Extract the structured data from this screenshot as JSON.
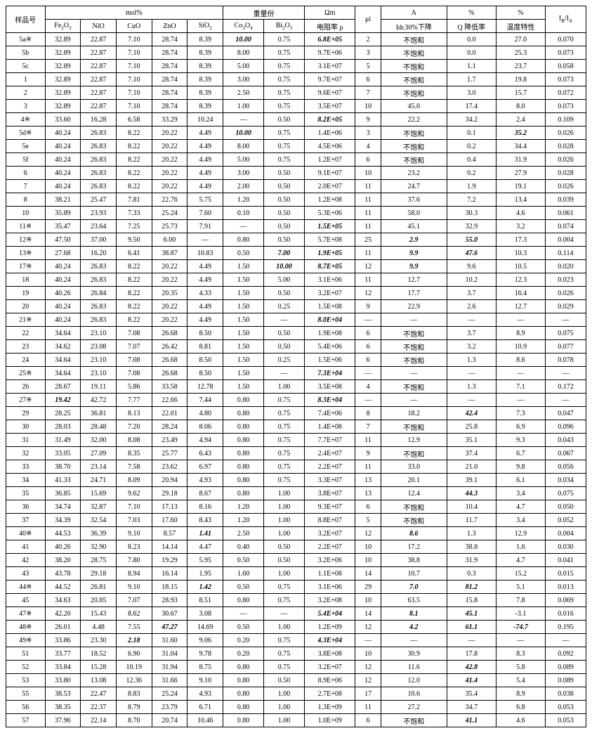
{
  "headers": {
    "group_mol": "mol%",
    "group_wt": "重量份",
    "group_ohm": "Ωm",
    "group_a": "A",
    "group_pct": "%",
    "sample": "样品号",
    "fe2o3": "Fe₂O₃",
    "nio": "NiO",
    "cuo": "CuO",
    "zno": "ZnO",
    "sio2": "SiO₂",
    "co3o4": "Co₃O₄",
    "bi2o3": "Bi₂O₃",
    "rho": "电阻率 ρ",
    "ui": "μi",
    "idc": "Idc30%下降",
    "q": "Q 降低率",
    "temp": "温度特性",
    "ibia": "I_B/I_A"
  },
  "rows": [
    {
      "s": "5a※",
      "fe": "32.89",
      "ni": "22.87",
      "cu": "7.10",
      "zn": "28.74",
      "si": "8.39",
      "co": "10.00",
      "co_bi": true,
      "bi": "0.75",
      "r": "6.8E+05",
      "r_bi": true,
      "ui": "2",
      "idc": "不饱和",
      "q": "0.0",
      "t": "27.0",
      "ib": "0.070"
    },
    {
      "s": "5b",
      "fe": "32.89",
      "ni": "22.87",
      "cu": "7.10",
      "zn": "28.74",
      "si": "8.39",
      "co": "8.00",
      "bi": "0.75",
      "r": "9.7E+06",
      "ui": "3",
      "idc": "不饱和",
      "q": "0.0",
      "t": "25.3",
      "ib": "0.073"
    },
    {
      "s": "5c",
      "fe": "32.89",
      "ni": "22.87",
      "cu": "7.10",
      "zn": "28.74",
      "si": "8.39",
      "co": "5.00",
      "bi": "0.75",
      "r": "3.1E+07",
      "ui": "5",
      "idc": "不饱和",
      "q": "1.1",
      "t": "23.7",
      "ib": "0.058"
    },
    {
      "s": "1",
      "fe": "32.89",
      "ni": "22.87",
      "cu": "7.10",
      "zn": "28.74",
      "si": "8.39",
      "co": "3.00",
      "bi": "0.75",
      "r": "9.7E+07",
      "ui": "6",
      "idc": "不饱和",
      "q": "1.7",
      "t": "19.8",
      "ib": "0.073"
    },
    {
      "s": "2",
      "fe": "32.89",
      "ni": "22.87",
      "cu": "7.10",
      "zn": "28.74",
      "si": "8.39",
      "co": "2.50",
      "bi": "0.75",
      "r": "9.6E+07",
      "ui": "7",
      "idc": "不饱和",
      "q": "3.0",
      "t": "15.7",
      "ib": "0.072"
    },
    {
      "s": "3",
      "fe": "32.89",
      "ni": "22.87",
      "cu": "7.10",
      "zn": "28.74",
      "si": "8.39",
      "co": "1.00",
      "bi": "0.75",
      "r": "3.5E+07",
      "ui": "10",
      "idc": "45.0",
      "q": "17.4",
      "t": "8.0",
      "ib": "0.073"
    },
    {
      "s": "4※",
      "fe": "33.60",
      "ni": "16.28",
      "cu": "6.58",
      "zn": "33.29",
      "si": "10.24",
      "co": "—",
      "bi": "0.50",
      "r": "8.2E+05",
      "r_bi": true,
      "ui": "9",
      "idc": "22.2",
      "q": "34.2",
      "t": "2.4",
      "ib": "0.109"
    },
    {
      "s": "5d※",
      "fe": "40.24",
      "ni": "26.83",
      "cu": "8.22",
      "zn": "20.22",
      "si": "4.49",
      "co": "10.00",
      "co_bi": true,
      "bi": "0.75",
      "r": "1.4E+06",
      "ui": "3",
      "idc": "不饱和",
      "q": "0.1",
      "t": "35.2",
      "t_bi": true,
      "ib": "0.026"
    },
    {
      "s": "5e",
      "fe": "40.24",
      "ni": "26.83",
      "cu": "8.22",
      "zn": "20.22",
      "si": "4.49",
      "co": "8.00",
      "bi": "0.75",
      "r": "4.5E+06",
      "ui": "4",
      "idc": "不饱和",
      "q": "0.2",
      "t": "34.4",
      "ib": "0.028"
    },
    {
      "s": "5f",
      "fe": "40.24",
      "ni": "26.83",
      "cu": "8.22",
      "zn": "20.22",
      "si": "4.49",
      "co": "5.00",
      "bi": "0.75",
      "r": "1.2E+07",
      "ui": "6",
      "idc": "不饱和",
      "q": "0.4",
      "t": "31.9",
      "ib": "0.026"
    },
    {
      "s": "6",
      "fe": "40.24",
      "ni": "26.83",
      "cu": "8.22",
      "zn": "20.22",
      "si": "4.49",
      "co": "3.00",
      "bi": "0.50",
      "r": "9.1E+07",
      "ui": "10",
      "idc": "23.2",
      "q": "0.2",
      "t": "27.9",
      "ib": "0.028"
    },
    {
      "s": "7",
      "fe": "40.24",
      "ni": "26.83",
      "cu": "8.22",
      "zn": "20.22",
      "si": "4.49",
      "co": "2.00",
      "bi": "0.50",
      "r": "2.0E+07",
      "ui": "11",
      "idc": "24.7",
      "q": "1.9",
      "t": "19.1",
      "ib": "0.026"
    },
    {
      "s": "8",
      "fe": "38.21",
      "ni": "25.47",
      "cu": "7.81",
      "zn": "22.76",
      "si": "5.75",
      "co": "1.20",
      "bi": "0.50",
      "r": "1.2E+08",
      "ui": "11",
      "idc": "37.6",
      "q": "7.2",
      "t": "13.4",
      "ib": "0.039"
    },
    {
      "s": "10",
      "fe": "35.89",
      "ni": "23.93",
      "cu": "7.33",
      "zn": "25.24",
      "si": "7.60",
      "co": "0.10",
      "bi": "0.50",
      "r": "5.3E+06",
      "ui": "11",
      "idc": "58.0",
      "q": "30.3",
      "t": "4.6",
      "ib": "0.061"
    },
    {
      "s": "11※",
      "fe": "35.47",
      "ni": "23.64",
      "cu": "7.25",
      "zn": "25.73",
      "si": "7.91",
      "co": "—",
      "bi": "0.50",
      "r": "1.5E+05",
      "r_bi": true,
      "ui": "11",
      "idc": "45.1",
      "q": "32.9",
      "t": "3.2",
      "ib": "0.074"
    },
    {
      "s": "12※",
      "fe": "47.50",
      "ni": "37.00",
      "cu": "9.50",
      "zn": "6.00",
      "si": "—",
      "co": "0.80",
      "bi": "0.50",
      "r": "5.7E+08",
      "ui": "25",
      "idc": "2.9",
      "idc_bi": true,
      "q": "55.0",
      "q_bi": true,
      "t": "17.3",
      "ib": "0.004"
    },
    {
      "s": "13※",
      "fe": "27.68",
      "ni": "16.20",
      "cu": "6.41",
      "zn": "38.87",
      "si": "10.83",
      "co": "0.50",
      "bi": "7.00",
      "bi_bi": true,
      "r": "1.9E+05",
      "r_bi": true,
      "ui": "11",
      "idc": "9.9",
      "idc_bi": true,
      "q": "47.6",
      "q_bi": true,
      "t": "10.3",
      "ib": "0.114"
    },
    {
      "s": "17※",
      "fe": "40.24",
      "ni": "26.83",
      "cu": "8.22",
      "zn": "20.22",
      "si": "4.49",
      "co": "1.50",
      "bi": "10.00",
      "bi_bi": true,
      "r": "8.7E+05",
      "r_bi": true,
      "ui": "12",
      "idc": "9.9",
      "idc_bi": true,
      "q": "9.6",
      "t": "10.5",
      "ib": "0.020"
    },
    {
      "s": "18",
      "fe": "40.24",
      "ni": "26.83",
      "cu": "8.22",
      "zn": "20.22",
      "si": "4.49",
      "co": "1.50",
      "bi": "5.00",
      "r": "3.1E+06",
      "ui": "11",
      "idc": "12.7",
      "q": "10.2",
      "t": "12.3",
      "ib": "0.023"
    },
    {
      "s": "19",
      "fe": "40.26",
      "ni": "26.84",
      "cu": "8.22",
      "zn": "20.35",
      "si": "4.33",
      "co": "1.50",
      "bi": "0.50",
      "r": "3.2E+07",
      "ui": "12",
      "idc": "17.7",
      "q": "3.7",
      "t": "16.4",
      "ib": "0.026"
    },
    {
      "s": "20",
      "fe": "40.24",
      "ni": "26.83",
      "cu": "8.22",
      "zn": "20.22",
      "si": "4.49",
      "co": "1.50",
      "bi": "0.25",
      "r": "1.5E+08",
      "ui": "9",
      "idc": "22.9",
      "q": "2.6",
      "t": "12.7",
      "ib": "0.029"
    },
    {
      "s": "21※",
      "fe": "40.24",
      "ni": "26.83",
      "cu": "8.22",
      "zn": "20.22",
      "si": "4.49",
      "co": "1.50",
      "bi": "—",
      "r": "8.0E+04",
      "r_bi": true,
      "ui": "—",
      "idc": "—",
      "q": "—",
      "t": "—",
      "ib": "—"
    },
    {
      "s": "22",
      "fe": "34.64",
      "ni": "23.10",
      "cu": "7.08",
      "zn": "26.68",
      "si": "8.50",
      "co": "1.50",
      "bi": "0.50",
      "r": "1.9E+08",
      "ui": "6",
      "idc": "不饱和",
      "q": "3.7",
      "t": "8.9",
      "ib": "0.075"
    },
    {
      "s": "23",
      "fe": "34.62",
      "ni": "23.08",
      "cu": "7.07",
      "zn": "26.42",
      "si": "8.81",
      "co": "1.50",
      "bi": "0.50",
      "r": "5.4E+06",
      "ui": "6",
      "idc": "不饱和",
      "q": "3.2",
      "t": "10.9",
      "ib": "0.077"
    },
    {
      "s": "24",
      "fe": "34.64",
      "ni": "23.10",
      "cu": "7.08",
      "zn": "26.68",
      "si": "8.50",
      "co": "1.50",
      "bi": "0.25",
      "r": "1.5E+06",
      "ui": "6",
      "idc": "不饱和",
      "q": "1.3",
      "t": "8.6",
      "ib": "0.078"
    },
    {
      "s": "25※",
      "fe": "34.64",
      "ni": "23.10",
      "cu": "7.08",
      "zn": "26.68",
      "si": "8.50",
      "co": "1.50",
      "bi": "—",
      "r": "7.3E+04",
      "r_bi": true,
      "ui": "—",
      "idc": "—",
      "q": "—",
      "t": "—",
      "ib": "—"
    },
    {
      "s": "26",
      "fe": "28.67",
      "ni": "19.11",
      "cu": "5.86",
      "zn": "33.58",
      "si": "12.78",
      "co": "1.50",
      "bi": "1.00",
      "r": "3.5E+08",
      "ui": "4",
      "idc": "不饱和",
      "q": "1.3",
      "t": "7.1",
      "ib": "0.172"
    },
    {
      "s": "27※",
      "fe": "19.42",
      "fe_bi": true,
      "ni": "42.72",
      "cu": "7.77",
      "zn": "22.66",
      "si": "7.44",
      "co": "0.80",
      "bi": "0.75",
      "r": "8.3E+04",
      "r_bi": true,
      "ui": "—",
      "idc": "—",
      "q": "—",
      "t": "—",
      "ib": "—"
    },
    {
      "s": "29",
      "fe": "28.25",
      "ni": "36.81",
      "cu": "8.13",
      "zn": "22.01",
      "si": "4.80",
      "co": "0.80",
      "bi": "0.75",
      "r": "7.4E+06",
      "ui": "8",
      "idc": "18.2",
      "q": "42.4",
      "q_bi": true,
      "t": "7.3",
      "ib": "0.047"
    },
    {
      "s": "30",
      "fe": "28.03",
      "ni": "28.48",
      "cu": "7.20",
      "zn": "28.24",
      "si": "8.06",
      "co": "0.80",
      "bi": "0.75",
      "r": "1.4E+08",
      "ui": "7",
      "idc": "不饱和",
      "q": "25.8",
      "t": "6.9",
      "ib": "0.096"
    },
    {
      "s": "31",
      "fe": "31.49",
      "ni": "32.00",
      "cu": "8.08",
      "zn": "23.49",
      "si": "4.94",
      "co": "0.80",
      "bi": "0.75",
      "r": "7.7E+07",
      "ui": "11",
      "idc": "12.9",
      "q": "35.1",
      "t": "9.3",
      "ib": "0.043"
    },
    {
      "s": "32",
      "fe": "33.05",
      "ni": "27.09",
      "cu": "8.35",
      "zn": "25.77",
      "si": "6.43",
      "co": "0.80",
      "bi": "0.75",
      "r": "2.4E+07",
      "ui": "9",
      "idc": "不饱和",
      "q": "37.4",
      "t": "6.7",
      "ib": "0.067"
    },
    {
      "s": "33",
      "fe": "38.70",
      "ni": "23.14",
      "cu": "7.58",
      "zn": "23.62",
      "si": "6.97",
      "co": "0.80",
      "bi": "0.75",
      "r": "2.2E+07",
      "ui": "11",
      "idc": "33.0",
      "q": "21.0",
      "t": "9.8",
      "ib": "0.056"
    },
    {
      "s": "34",
      "fe": "41.33",
      "ni": "24.71",
      "cu": "8.09",
      "zn": "20.94",
      "si": "4.93",
      "co": "0.80",
      "bi": "0.75",
      "r": "3.3E+07",
      "ui": "13",
      "idc": "20.1",
      "q": "39.1",
      "t": "6.1",
      "ib": "0.034"
    },
    {
      "s": "35",
      "fe": "36.85",
      "ni": "15.69",
      "cu": "9.62",
      "zn": "29.18",
      "si": "8.67",
      "co": "0.80",
      "bi": "1.00",
      "r": "3.8E+07",
      "ui": "13",
      "idc": "12.4",
      "q": "44.3",
      "q_bi": true,
      "t": "3.4",
      "ib": "0.075"
    },
    {
      "s": "36",
      "fe": "34.74",
      "ni": "32.87",
      "cu": "7.10",
      "zn": "17.13",
      "si": "8.16",
      "co": "1.20",
      "bi": "1.00",
      "r": "9.3E+07",
      "ui": "6",
      "idc": "不饱和",
      "q": "10.4",
      "t": "4.7",
      "ib": "0.050"
    },
    {
      "s": "37",
      "fe": "34.39",
      "ni": "32.54",
      "cu": "7.03",
      "zn": "17.60",
      "si": "8.43",
      "co": "1.20",
      "bi": "1.00",
      "r": "8.8E+07",
      "ui": "5",
      "idc": "不饱和",
      "q": "11.7",
      "t": "3.4",
      "ib": "0.052"
    },
    {
      "s": "40※",
      "fe": "44.53",
      "ni": "36.39",
      "cu": "9.10",
      "zn": "8.57",
      "si": "1.41",
      "si_bi": true,
      "co": "2.50",
      "bi": "1.00",
      "r": "3.2E+07",
      "ui": "12",
      "idc": "8.6",
      "idc_bi": true,
      "q": "1.3",
      "t": "12.9",
      "ib": "0.004"
    },
    {
      "s": "41",
      "fe": "40.26",
      "ni": "32.90",
      "cu": "8.23",
      "zn": "14.14",
      "si": "4.47",
      "co": "0.40",
      "bi": "0.50",
      "r": "2.2E+07",
      "ui": "10",
      "idc": "17.2",
      "q": "38.8",
      "t": "1.6",
      "ib": "0.030"
    },
    {
      "s": "42",
      "fe": "38.20",
      "ni": "28.75",
      "cu": "7.80",
      "zn": "19.29",
      "si": "5.95",
      "co": "0.50",
      "bi": "0.50",
      "r": "3.2E+06",
      "ui": "10",
      "idc": "38.8",
      "q": "31.9",
      "t": "4.7",
      "ib": "0.041"
    },
    {
      "s": "43",
      "fe": "43.78",
      "ni": "29.18",
      "cu": "8.94",
      "zn": "16.14",
      "si": "1.95",
      "co": "1.60",
      "bi": "1.00",
      "r": "1.1E+08",
      "ui": "14",
      "idc": "10.7",
      "q": "0.3",
      "t": "15.2",
      "ib": "0.015"
    },
    {
      "s": "44※",
      "fe": "44.52",
      "ni": "26.81",
      "cu": "9.10",
      "zn": "18.15",
      "si": "1.42",
      "si_bi": true,
      "co": "0.50",
      "bi": "0.75",
      "r": "3.1E+06",
      "ui": "29",
      "idc": "7.0",
      "idc_bi": true,
      "q": "81.2",
      "q_bi": true,
      "t": "5.1",
      "ib": "0.013"
    },
    {
      "s": "45",
      "fe": "34.63",
      "ni": "20.85",
      "cu": "7.07",
      "zn": "28.93",
      "si": "8.51",
      "co": "0.80",
      "bi": "0.75",
      "r": "3.2E+08",
      "ui": "10",
      "idc": "63.5",
      "q": "15.8",
      "t": "7.8",
      "ib": "0.069"
    },
    {
      "s": "47※",
      "fe": "42.20",
      "ni": "15.43",
      "cu": "8.62",
      "zn": "30.67",
      "si": "3.08",
      "co": "—",
      "bi": "—",
      "r": "5.4E+04",
      "r_bi": true,
      "ui": "14",
      "idc": "8.1",
      "idc_bi": true,
      "q": "45.1",
      "q_bi": true,
      "t": "-3.1",
      "ib": "0.016"
    },
    {
      "s": "48※",
      "fe": "26.01",
      "ni": "4.48",
      "cu": "7.55",
      "zn": "47.27",
      "zn_bi": true,
      "si": "14.69",
      "co": "0.50",
      "bi": "1.00",
      "r": "1.2E+09",
      "ui": "12",
      "idc": "4.2",
      "idc_bi": true,
      "q": "61.1",
      "q_bi": true,
      "t": "-74.7",
      "t_bi": true,
      "ib": "0.195"
    },
    {
      "s": "49※",
      "fe": "33.86",
      "ni": "23.30",
      "cu": "2.18",
      "cu_bi": true,
      "zn": "31.60",
      "si": "9.06",
      "co": "0.20",
      "bi": "0.75",
      "r": "4.3E+04",
      "r_bi": true,
      "ui": "—",
      "idc": "—",
      "q": "—",
      "t": "—",
      "ib": "—"
    },
    {
      "s": "51",
      "fe": "33.77",
      "ni": "18.52",
      "cu": "6.90",
      "zn": "31.04",
      "si": "9.78",
      "co": "0.20",
      "bi": "0.75",
      "r": "3.8E+08",
      "ui": "10",
      "idc": "30.9",
      "q": "17.8",
      "t": "8.3",
      "ib": "0.092"
    },
    {
      "s": "52",
      "fe": "33.84",
      "ni": "15.28",
      "cu": "10.19",
      "zn": "31.94",
      "si": "8.75",
      "co": "0.80",
      "bi": "0.75",
      "r": "3.2E+07",
      "ui": "12",
      "idc": "11.6",
      "q": "42.8",
      "q_bi": true,
      "t": "5.8",
      "ib": "0.089"
    },
    {
      "s": "53",
      "fe": "33.80",
      "ni": "13.08",
      "cu": "12.36",
      "zn": "31.66",
      "si": "9.10",
      "co": "0.80",
      "bi": "0.50",
      "r": "8.9E+06",
      "ui": "12",
      "idc": "12.0",
      "q": "41.4",
      "q_bi": true,
      "t": "5.4",
      "ib": "0.089"
    },
    {
      "s": "55",
      "fe": "38.53",
      "ni": "22.47",
      "cu": "8.83",
      "zn": "25.24",
      "si": "4.93",
      "co": "0.80",
      "bi": "1.00",
      "r": "2.7E+08",
      "ui": "17",
      "idc": "10.6",
      "q": "35.4",
      "t": "8.9",
      "ib": "0.038"
    },
    {
      "s": "56",
      "fe": "38.35",
      "ni": "22.37",
      "cu": "8.79",
      "zn": "23.79",
      "si": "6.71",
      "co": "0.80",
      "bi": "1.00",
      "r": "1.3E+09",
      "ui": "11",
      "idc": "27.2",
      "q": "34.7",
      "t": "6.8",
      "ib": "0.053"
    },
    {
      "s": "57",
      "fe": "37.96",
      "ni": "22.14",
      "cu": "8.70",
      "zn": "20.74",
      "si": "10.46",
      "co": "0.80",
      "bi": "1.00",
      "r": "1.0E+09",
      "ui": "6",
      "idc": "不饱和",
      "q": "41.1",
      "q_bi": true,
      "t": "4.6",
      "ib": "0.053"
    }
  ]
}
